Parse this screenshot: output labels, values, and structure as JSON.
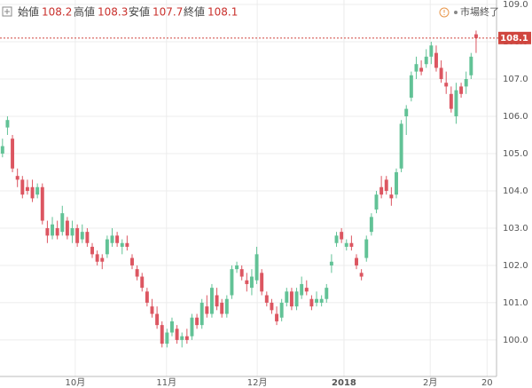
{
  "chart_data": {
    "type": "candlestick",
    "ohlc_labels": [
      "始値",
      "高値",
      "安値",
      "終値"
    ],
    "status": "市場終了",
    "up_color": "#62c296",
    "down_color": "#dc5661",
    "open": [
      105.0,
      105.7,
      105.4,
      104.4,
      104.3,
      104.1,
      104.1,
      103.9,
      104.1,
      103.0,
      102.8,
      103.0,
      102.9,
      103.2,
      102.8,
      103.0,
      102.7,
      102.9,
      102.5,
      102.3,
      102.2,
      102.3,
      102.6,
      102.8,
      102.5,
      102.6,
      102.2,
      101.9,
      101.7,
      101.3,
      100.9,
      100.7,
      100.4,
      99.9,
      100.2,
      100.3,
      100.0,
      100.1,
      100.1,
      100.6,
      100.4,
      100.9,
      100.7,
      101.2,
      101.0,
      100.7,
      101.2,
      101.9,
      101.9,
      101.6,
      101.4,
      101.6,
      101.8,
      101.2,
      101.0,
      100.7,
      100.6,
      101.0,
      101.3,
      100.9,
      101.2,
      101.4,
      101.1,
      101.0,
      101.0,
      101.1,
      102.0,
      102.6,
      102.9,
      102.5,
      102.6,
      102.2,
      101.8,
      102.2,
      102.9,
      103.5,
      104.1,
      104.3,
      103.9,
      103.9,
      104.6,
      106.0,
      106.5,
      107.2,
      107.3,
      107.4,
      107.6,
      107.7,
      107.3,
      106.9,
      106.6,
      106.0,
      106.8,
      106.8,
      107.1,
      108.2
    ],
    "high": [
      105.4,
      106.0,
      105.5,
      104.6,
      104.4,
      104.3,
      104.3,
      104.2,
      104.2,
      103.2,
      103.3,
      103.2,
      103.6,
      103.3,
      103.2,
      103.1,
      103.1,
      103.0,
      102.6,
      102.4,
      102.3,
      102.8,
      103.0,
      102.9,
      102.7,
      102.8,
      102.3,
      102.0,
      101.8,
      101.4,
      101.1,
      100.9,
      100.5,
      100.3,
      100.6,
      100.4,
      100.2,
      100.3,
      100.7,
      100.7,
      101.1,
      101.2,
      101.5,
      101.4,
      101.1,
      101.2,
      102.0,
      102.1,
      102.0,
      101.8,
      101.9,
      102.5,
      101.9,
      101.3,
      101.1,
      100.9,
      101.1,
      101.4,
      101.4,
      101.4,
      101.7,
      101.6,
      101.2,
      101.3,
      101.2,
      101.5,
      102.3,
      102.9,
      103.0,
      102.7,
      102.8,
      102.3,
      101.9,
      102.8,
      103.4,
      104.0,
      104.4,
      104.4,
      104.1,
      104.6,
      105.9,
      106.3,
      107.2,
      107.6,
      107.5,
      107.8,
      108.0,
      107.9,
      107.5,
      107.2,
      106.8,
      106.9,
      106.9,
      107.2,
      107.7,
      108.3
    ],
    "low": [
      104.9,
      105.5,
      104.5,
      104.1,
      103.8,
      103.9,
      103.7,
      103.8,
      103.1,
      102.6,
      102.7,
      102.7,
      102.8,
      102.7,
      102.6,
      102.5,
      102.6,
      102.5,
      102.2,
      102.0,
      101.9,
      102.2,
      102.5,
      102.5,
      102.3,
      102.4,
      101.9,
      101.6,
      101.3,
      100.9,
      100.6,
      100.3,
      99.8,
      99.8,
      100.1,
      99.9,
      99.8,
      99.9,
      100.0,
      100.3,
      100.3,
      100.6,
      100.6,
      100.8,
      100.6,
      100.6,
      101.1,
      101.8,
      101.6,
      101.3,
      101.2,
      101.5,
      101.2,
      100.9,
      100.7,
      100.4,
      100.5,
      100.9,
      100.8,
      100.8,
      101.1,
      101.2,
      100.8,
      100.9,
      100.9,
      101.0,
      101.8,
      102.5,
      102.6,
      102.4,
      102.4,
      101.9,
      101.6,
      102.1,
      102.8,
      103.4,
      103.8,
      103.9,
      103.6,
      103.8,
      104.5,
      105.5,
      106.4,
      107.0,
      107.1,
      107.3,
      107.4,
      107.2,
      106.9,
      106.6,
      106.1,
      105.8,
      106.5,
      106.6,
      107.0,
      107.7
    ],
    "close": [
      105.2,
      105.9,
      104.6,
      104.3,
      103.9,
      104.0,
      103.8,
      104.1,
      103.2,
      102.8,
      103.1,
      102.8,
      103.4,
      102.8,
      103.0,
      102.6,
      102.9,
      102.6,
      102.3,
      102.1,
      102.1,
      102.7,
      102.8,
      102.6,
      102.6,
      102.5,
      102.0,
      101.7,
      101.4,
      101.0,
      100.7,
      100.4,
      99.9,
      100.2,
      100.5,
      100.0,
      100.1,
      100.0,
      100.6,
      100.4,
      101.0,
      100.7,
      101.4,
      100.9,
      100.7,
      101.1,
      101.9,
      102.0,
      101.7,
      101.5,
      101.7,
      102.3,
      101.3,
      101.0,
      100.8,
      100.5,
      101.0,
      101.3,
      100.9,
      101.3,
      101.5,
      101.3,
      100.9,
      101.1,
      101.1,
      101.4,
      102.1,
      102.8,
      102.7,
      102.6,
      102.5,
      102.0,
      101.7,
      102.7,
      103.3,
      103.9,
      103.9,
      104.0,
      103.8,
      104.5,
      105.8,
      106.2,
      107.1,
      107.4,
      107.2,
      107.6,
      107.9,
      107.3,
      107.0,
      106.8,
      106.2,
      106.7,
      106.6,
      107.0,
      107.6,
      108.1
    ],
    "xlim": [
      -0.5,
      99.1
    ],
    "xticks": [
      {
        "value": 14.6,
        "label": "10月"
      },
      {
        "value": 32.9,
        "label": "11月"
      },
      {
        "value": 51.1,
        "label": "12月"
      },
      {
        "value": 68.5,
        "label": "2018"
      },
      {
        "value": 85.8,
        "label": "2月"
      },
      {
        "value": 97.2,
        "label": "20"
      }
    ],
    "ylim": [
      98.95,
      109.12
    ],
    "yticks": [
      {
        "value": 100,
        "label": "100.0"
      },
      {
        "value": 101,
        "label": "101.0"
      },
      {
        "value": 102,
        "label": "102.0"
      },
      {
        "value": 103,
        "label": "103.0"
      },
      {
        "value": 104,
        "label": "104.0"
      },
      {
        "value": 105,
        "label": "105.0"
      },
      {
        "value": 106,
        "label": "106.0"
      },
      {
        "value": 107,
        "label": "107.0"
      },
      {
        "value": 108,
        "label": "108.0"
      },
      {
        "value": 109,
        "label": "109.0"
      }
    ],
    "grid": true
  }
}
